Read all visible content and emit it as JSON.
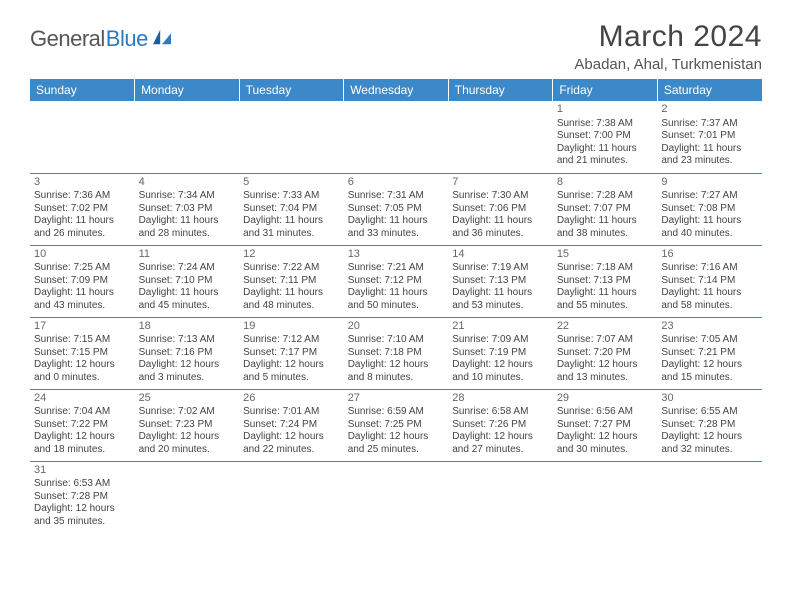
{
  "brand": {
    "part1": "General",
    "part2": "Blue"
  },
  "title": "March 2024",
  "location": "Abadan, Ahal, Turkmenistan",
  "colors": {
    "header_bg": "#3b89c9",
    "header_text": "#ffffff",
    "text": "#444444",
    "brand_gray": "#555555",
    "brand_blue": "#2b7bbf",
    "border": "#3b89c9",
    "background": "#ffffff"
  },
  "typography": {
    "title_fontsize": 30,
    "location_fontsize": 15,
    "dayhead_fontsize": 12,
    "cell_fontsize": 10,
    "logo_fontsize": 22
  },
  "day_headers": [
    "Sunday",
    "Monday",
    "Tuesday",
    "Wednesday",
    "Thursday",
    "Friday",
    "Saturday"
  ],
  "weeks": [
    [
      null,
      null,
      null,
      null,
      null,
      {
        "n": "1",
        "sr": "Sunrise: 7:38 AM",
        "ss": "Sunset: 7:00 PM",
        "d1": "Daylight: 11 hours",
        "d2": "and 21 minutes."
      },
      {
        "n": "2",
        "sr": "Sunrise: 7:37 AM",
        "ss": "Sunset: 7:01 PM",
        "d1": "Daylight: 11 hours",
        "d2": "and 23 minutes."
      }
    ],
    [
      {
        "n": "3",
        "sr": "Sunrise: 7:36 AM",
        "ss": "Sunset: 7:02 PM",
        "d1": "Daylight: 11 hours",
        "d2": "and 26 minutes."
      },
      {
        "n": "4",
        "sr": "Sunrise: 7:34 AM",
        "ss": "Sunset: 7:03 PM",
        "d1": "Daylight: 11 hours",
        "d2": "and 28 minutes."
      },
      {
        "n": "5",
        "sr": "Sunrise: 7:33 AM",
        "ss": "Sunset: 7:04 PM",
        "d1": "Daylight: 11 hours",
        "d2": "and 31 minutes."
      },
      {
        "n": "6",
        "sr": "Sunrise: 7:31 AM",
        "ss": "Sunset: 7:05 PM",
        "d1": "Daylight: 11 hours",
        "d2": "and 33 minutes."
      },
      {
        "n": "7",
        "sr": "Sunrise: 7:30 AM",
        "ss": "Sunset: 7:06 PM",
        "d1": "Daylight: 11 hours",
        "d2": "and 36 minutes."
      },
      {
        "n": "8",
        "sr": "Sunrise: 7:28 AM",
        "ss": "Sunset: 7:07 PM",
        "d1": "Daylight: 11 hours",
        "d2": "and 38 minutes."
      },
      {
        "n": "9",
        "sr": "Sunrise: 7:27 AM",
        "ss": "Sunset: 7:08 PM",
        "d1": "Daylight: 11 hours",
        "d2": "and 40 minutes."
      }
    ],
    [
      {
        "n": "10",
        "sr": "Sunrise: 7:25 AM",
        "ss": "Sunset: 7:09 PM",
        "d1": "Daylight: 11 hours",
        "d2": "and 43 minutes."
      },
      {
        "n": "11",
        "sr": "Sunrise: 7:24 AM",
        "ss": "Sunset: 7:10 PM",
        "d1": "Daylight: 11 hours",
        "d2": "and 45 minutes."
      },
      {
        "n": "12",
        "sr": "Sunrise: 7:22 AM",
        "ss": "Sunset: 7:11 PM",
        "d1": "Daylight: 11 hours",
        "d2": "and 48 minutes."
      },
      {
        "n": "13",
        "sr": "Sunrise: 7:21 AM",
        "ss": "Sunset: 7:12 PM",
        "d1": "Daylight: 11 hours",
        "d2": "and 50 minutes."
      },
      {
        "n": "14",
        "sr": "Sunrise: 7:19 AM",
        "ss": "Sunset: 7:13 PM",
        "d1": "Daylight: 11 hours",
        "d2": "and 53 minutes."
      },
      {
        "n": "15",
        "sr": "Sunrise: 7:18 AM",
        "ss": "Sunset: 7:13 PM",
        "d1": "Daylight: 11 hours",
        "d2": "and 55 minutes."
      },
      {
        "n": "16",
        "sr": "Sunrise: 7:16 AM",
        "ss": "Sunset: 7:14 PM",
        "d1": "Daylight: 11 hours",
        "d2": "and 58 minutes."
      }
    ],
    [
      {
        "n": "17",
        "sr": "Sunrise: 7:15 AM",
        "ss": "Sunset: 7:15 PM",
        "d1": "Daylight: 12 hours",
        "d2": "and 0 minutes."
      },
      {
        "n": "18",
        "sr": "Sunrise: 7:13 AM",
        "ss": "Sunset: 7:16 PM",
        "d1": "Daylight: 12 hours",
        "d2": "and 3 minutes."
      },
      {
        "n": "19",
        "sr": "Sunrise: 7:12 AM",
        "ss": "Sunset: 7:17 PM",
        "d1": "Daylight: 12 hours",
        "d2": "and 5 minutes."
      },
      {
        "n": "20",
        "sr": "Sunrise: 7:10 AM",
        "ss": "Sunset: 7:18 PM",
        "d1": "Daylight: 12 hours",
        "d2": "and 8 minutes."
      },
      {
        "n": "21",
        "sr": "Sunrise: 7:09 AM",
        "ss": "Sunset: 7:19 PM",
        "d1": "Daylight: 12 hours",
        "d2": "and 10 minutes."
      },
      {
        "n": "22",
        "sr": "Sunrise: 7:07 AM",
        "ss": "Sunset: 7:20 PM",
        "d1": "Daylight: 12 hours",
        "d2": "and 13 minutes."
      },
      {
        "n": "23",
        "sr": "Sunrise: 7:05 AM",
        "ss": "Sunset: 7:21 PM",
        "d1": "Daylight: 12 hours",
        "d2": "and 15 minutes."
      }
    ],
    [
      {
        "n": "24",
        "sr": "Sunrise: 7:04 AM",
        "ss": "Sunset: 7:22 PM",
        "d1": "Daylight: 12 hours",
        "d2": "and 18 minutes."
      },
      {
        "n": "25",
        "sr": "Sunrise: 7:02 AM",
        "ss": "Sunset: 7:23 PM",
        "d1": "Daylight: 12 hours",
        "d2": "and 20 minutes."
      },
      {
        "n": "26",
        "sr": "Sunrise: 7:01 AM",
        "ss": "Sunset: 7:24 PM",
        "d1": "Daylight: 12 hours",
        "d2": "and 22 minutes."
      },
      {
        "n": "27",
        "sr": "Sunrise: 6:59 AM",
        "ss": "Sunset: 7:25 PM",
        "d1": "Daylight: 12 hours",
        "d2": "and 25 minutes."
      },
      {
        "n": "28",
        "sr": "Sunrise: 6:58 AM",
        "ss": "Sunset: 7:26 PM",
        "d1": "Daylight: 12 hours",
        "d2": "and 27 minutes."
      },
      {
        "n": "29",
        "sr": "Sunrise: 6:56 AM",
        "ss": "Sunset: 7:27 PM",
        "d1": "Daylight: 12 hours",
        "d2": "and 30 minutes."
      },
      {
        "n": "30",
        "sr": "Sunrise: 6:55 AM",
        "ss": "Sunset: 7:28 PM",
        "d1": "Daylight: 12 hours",
        "d2": "and 32 minutes."
      }
    ],
    [
      {
        "n": "31",
        "sr": "Sunrise: 6:53 AM",
        "ss": "Sunset: 7:28 PM",
        "d1": "Daylight: 12 hours",
        "d2": "and 35 minutes."
      },
      null,
      null,
      null,
      null,
      null,
      null
    ]
  ]
}
